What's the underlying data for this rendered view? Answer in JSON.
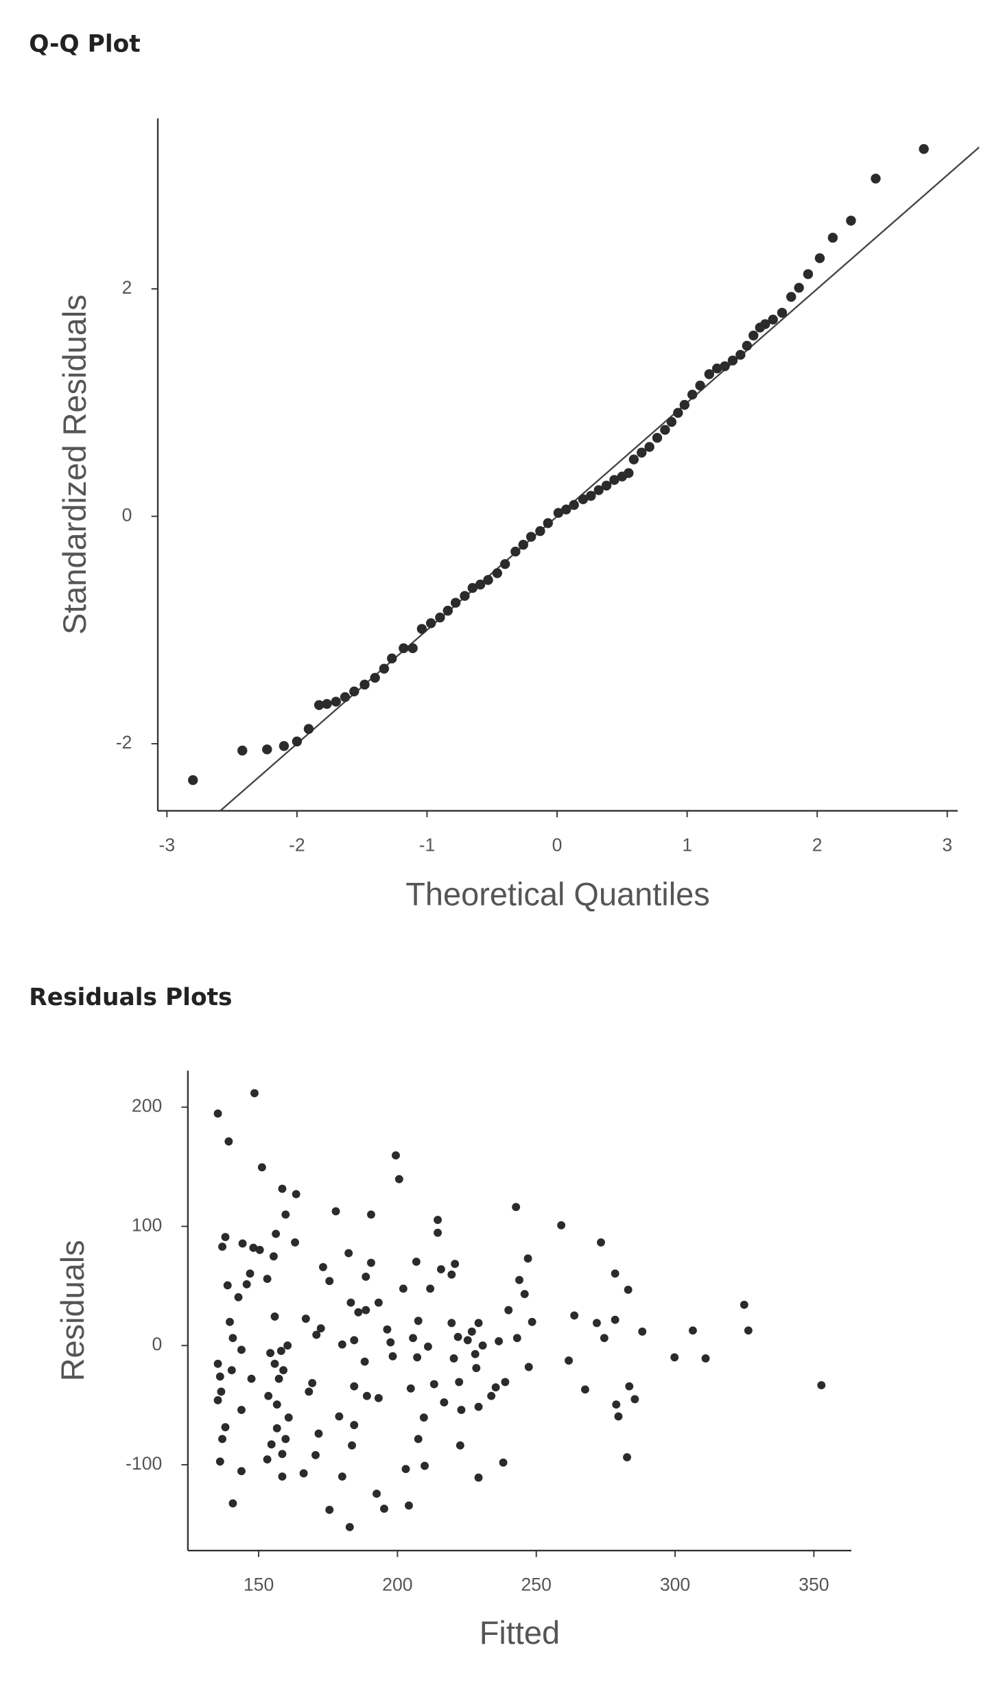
{
  "chart_data": [
    {
      "type": "scatter",
      "title": "Q-Q Plot",
      "x_label": "Theoretical Quantiles",
      "y_label": "Standardized Residuals",
      "color": "#2b2b2b",
      "line_color": "#444444",
      "reference_line": {
        "slope": 1,
        "intercept": 0
      },
      "xlim": [
        -3.07,
        3.08
      ],
      "ylim": [
        -2.59,
        3.5
      ],
      "xticks": [
        -3,
        -2,
        -1,
        0,
        1,
        2,
        3
      ],
      "yticks": [
        -2,
        0,
        2
      ],
      "x": [
        -2.8,
        -2.42,
        -2.23,
        -2.1,
        -2.0,
        -1.91,
        -1.83,
        -1.77,
        -1.7,
        -1.63,
        -1.56,
        -1.48,
        -1.4,
        -1.33,
        -1.27,
        -1.18,
        -1.11,
        -1.04,
        -0.97,
        -0.9,
        -0.84,
        -0.78,
        -0.71,
        -0.65,
        -0.59,
        -0.53,
        -0.46,
        -0.4,
        -0.32,
        -0.26,
        -0.2,
        -0.13,
        -0.07,
        0.01,
        0.07,
        0.13,
        0.2,
        0.26,
        0.32,
        0.38,
        0.44,
        0.5,
        0.55,
        0.59,
        0.65,
        0.71,
        0.77,
        0.83,
        0.88,
        0.93,
        0.98,
        1.04,
        1.1,
        1.17,
        1.23,
        1.29,
        1.35,
        1.41,
        1.46,
        1.51,
        1.56,
        1.6,
        1.66,
        1.73,
        1.8,
        1.86,
        1.93,
        2.02,
        2.12,
        2.26,
        2.45,
        2.82
      ],
      "values": [
        -2.32,
        -2.06,
        -2.05,
        -2.02,
        -1.98,
        -1.87,
        -1.66,
        -1.65,
        -1.63,
        -1.59,
        -1.54,
        -1.48,
        -1.42,
        -1.34,
        -1.25,
        -1.16,
        -1.16,
        -0.99,
        -0.94,
        -0.89,
        -0.83,
        -0.76,
        -0.7,
        -0.63,
        -0.6,
        -0.56,
        -0.5,
        -0.42,
        -0.31,
        -0.25,
        -0.18,
        -0.13,
        -0.06,
        0.03,
        0.06,
        0.1,
        0.15,
        0.18,
        0.23,
        0.27,
        0.32,
        0.35,
        0.38,
        0.5,
        0.56,
        0.61,
        0.69,
        0.76,
        0.83,
        0.91,
        0.98,
        1.07,
        1.15,
        1.25,
        1.3,
        1.32,
        1.37,
        1.42,
        1.5,
        1.59,
        1.66,
        1.69,
        1.73,
        1.79,
        1.93,
        2.01,
        2.13,
        2.27,
        2.45,
        2.6,
        2.97,
        3.23
      ]
    },
    {
      "type": "scatter",
      "title": "Residuals Plots",
      "x_label": "Fitted",
      "y_label": "Residuals",
      "color": "#2b2b2b",
      "xlim": [
        124.5,
        363.5
      ],
      "ylim": [
        -172,
        230.6
      ],
      "xticks": [
        150,
        200,
        250,
        300,
        350
      ],
      "yticks": [
        -100,
        0,
        100,
        200
      ],
      "x": [
        135.3,
        148.5,
        139.2,
        151.2,
        136.9,
        138.0,
        144.2,
        148.1,
        138.8,
        145.7,
        146.9,
        142.7,
        139.6,
        140.7,
        143.8,
        135.3,
        136.1,
        136.5,
        135.3,
        140.3,
        147.4,
        143.8,
        136.9,
        138.0,
        136.1,
        143.8,
        140.7,
        150.4,
        158.5,
        163.5,
        159.7,
        156.2,
        155.4,
        163.1,
        153.1,
        155.8,
        154.2,
        158.1,
        155.8,
        158.9,
        160.4,
        157.3,
        153.5,
        156.6,
        160.8,
        156.6,
        159.7,
        154.6,
        158.5,
        153.1,
        158.5,
        167.0,
        170.8,
        172.4,
        173.2,
        175.5,
        177.8,
        168.1,
        169.3,
        171.6,
        170.5,
        166.2,
        175.5,
        179.0,
        180.1,
        180.1,
        182.4,
        183.2,
        185.9,
        188.6,
        190.5,
        190.5,
        188.6,
        193.2,
        188.2,
        184.4,
        184.4,
        184.4,
        183.6,
        182.8,
        189.0,
        193.2,
        192.5,
        195.2,
        196.3,
        197.5,
        199.4,
        200.6,
        202.1,
        198.3,
        203.0,
        204.1,
        204.8,
        206.8,
        207.5,
        205.6,
        207.1,
        207.5,
        209.5,
        209.8,
        211.0,
        211.8,
        214.5,
        214.5,
        215.7,
        213.2,
        216.8,
        219.5,
        220.7,
        219.5,
        221.8,
        220.3,
        222.2,
        223.0,
        222.6,
        225.3,
        226.8,
        229.2,
        228.0,
        228.4,
        230.7,
        229.2,
        229.2,
        233.8,
        235.4,
        236.5,
        238.8,
        238.1,
        240.0,
        242.7,
        243.1,
        243.9,
        247.0,
        245.8,
        248.5,
        247.3,
        259.0,
        261.7,
        263.7,
        267.6,
        271.8,
        273.3,
        274.5,
        278.4,
        278.4,
        278.8,
        279.6,
        282.7,
        283.1,
        283.5,
        285.5,
        288.2,
        299.8,
        306.4,
        311.0,
        324.9,
        326.4,
        352.7
      ],
      "values": [
        194.6,
        211.7,
        171.2,
        149.5,
        82.9,
        91.0,
        85.6,
        82.0,
        50.5,
        51.4,
        60.4,
        40.5,
        19.8,
        6.3,
        -3.6,
        -15.3,
        -26.0,
        -38.7,
        -45.9,
        -20.7,
        -27.9,
        -54.0,
        -78.4,
        -68.5,
        -97.3,
        -105.4,
        -132.4,
        80.2,
        131.5,
        127.0,
        109.9,
        93.7,
        74.8,
        86.5,
        55.9,
        24.3,
        -6.3,
        -4.5,
        -15.3,
        -20.7,
        0.0,
        -27.9,
        -42.3,
        -49.5,
        -60.4,
        -69.4,
        -78.4,
        -82.9,
        -91.0,
        -95.5,
        -109.9,
        22.5,
        9.0,
        14.4,
        65.8,
        54.1,
        112.6,
        -38.7,
        -31.5,
        -73.9,
        -91.9,
        -107.2,
        -137.8,
        -59.5,
        -109.9,
        0.9,
        77.5,
        36.0,
        27.9,
        57.7,
        109.9,
        69.4,
        29.7,
        36.0,
        -13.5,
        4.5,
        -34.2,
        -66.7,
        -83.8,
        -152.3,
        -42.3,
        -44.1,
        -124.3,
        -136.9,
        13.5,
        2.7,
        159.5,
        139.6,
        47.7,
        -9.0,
        -103.6,
        -134.2,
        -36.0,
        70.3,
        20.7,
        6.3,
        -9.9,
        -78.4,
        -60.4,
        -100.9,
        -0.9,
        47.7,
        105.4,
        94.6,
        64.0,
        -32.4,
        -47.7,
        59.5,
        68.5,
        18.9,
        7.2,
        -10.8,
        -30.6,
        -54.0,
        -83.8,
        4.5,
        11.7,
        18.9,
        -7.2,
        -18.9,
        0.0,
        -51.4,
        -110.8,
        -42.3,
        -35.1,
        3.6,
        -30.6,
        -98.2,
        29.7,
        116.2,
        6.3,
        55.0,
        73.0,
        43.2,
        19.8,
        -18.0,
        100.9,
        -12.6,
        25.2,
        -36.9,
        18.9,
        86.5,
        6.3,
        60.4,
        21.6,
        -49.5,
        -59.5,
        -93.7,
        46.8,
        -34.2,
        -45.0,
        11.7,
        -9.9,
        12.6,
        -10.8,
        34.2,
        12.6,
        -33.3
      ]
    }
  ]
}
